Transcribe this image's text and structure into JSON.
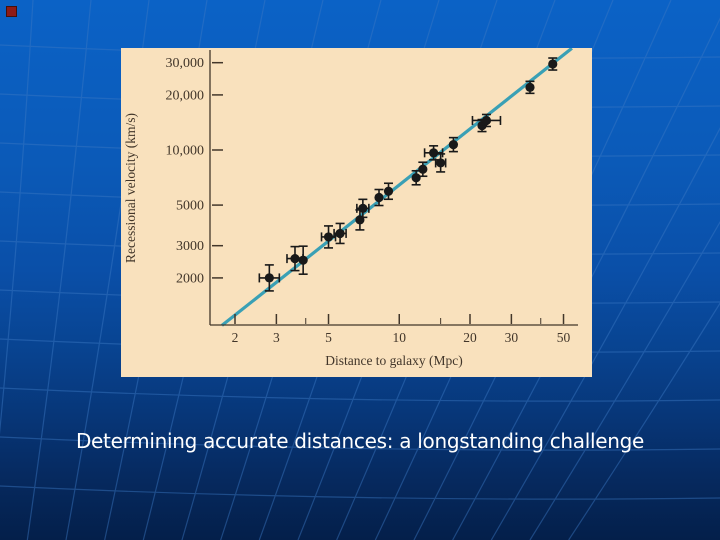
{
  "slide": {
    "caption": "Determining accurate distances: a longstanding challenge",
    "bullet_color": "#8e1b17",
    "background": {
      "top": "#0b62c6",
      "bottom": "#041f4a",
      "grid_line": "#3c79c4"
    }
  },
  "chart_data": {
    "type": "scatter",
    "x_scale": "log",
    "y_scale": "log",
    "title": "",
    "xlabel": "Distance to galaxy (Mpc)",
    "ylabel": "Recessional velocity (km/s)",
    "x_ticks": [
      2,
      3,
      5,
      10,
      20,
      30,
      50
    ],
    "x_tick_labels": [
      "2",
      "3",
      "5",
      "10",
      "20",
      "30",
      "50"
    ],
    "x_minor_ticks": [
      4,
      15,
      40
    ],
    "y_ticks": [
      2000,
      3000,
      5000,
      10000,
      20000,
      30000
    ],
    "y_tick_labels": [
      "2000",
      "3000",
      "5000",
      "10,000",
      "20,000",
      "30,000"
    ],
    "xlim": [
      1.7,
      58
    ],
    "ylim": [
      1100,
      36000
    ],
    "grid": false,
    "legend": "none",
    "points": [
      {
        "d": 2.8,
        "v": 2000,
        "ev": 13,
        "eh": 10
      },
      {
        "d": 3.6,
        "v": 2550,
        "ev": 12,
        "eh": 8
      },
      {
        "d": 3.9,
        "v": 2500,
        "ev": 14,
        "eh": 0
      },
      {
        "d": 5.0,
        "v": 3350,
        "ev": 11,
        "eh": 7
      },
      {
        "d": 5.6,
        "v": 3500,
        "ev": 10,
        "eh": 6
      },
      {
        "d": 6.8,
        "v": 4150,
        "ev": 10,
        "eh": 0
      },
      {
        "d": 7.0,
        "v": 4800,
        "ev": 9,
        "eh": 6
      },
      {
        "d": 8.2,
        "v": 5500,
        "ev": 8,
        "eh": 0
      },
      {
        "d": 9.0,
        "v": 5950,
        "ev": 8,
        "eh": 0
      },
      {
        "d": 11.8,
        "v": 7050,
        "ev": 7,
        "eh": 0
      },
      {
        "d": 12.6,
        "v": 7850,
        "ev": 7,
        "eh": 0
      },
      {
        "d": 14.0,
        "v": 9650,
        "ev": 7,
        "eh": 9
      },
      {
        "d": 15.0,
        "v": 8500,
        "ev": 9,
        "eh": 5
      },
      {
        "d": 17.0,
        "v": 10700,
        "ev": 7,
        "eh": 0
      },
      {
        "d": 22.5,
        "v": 13600,
        "ev": 6,
        "eh": 0
      },
      {
        "d": 23.5,
        "v": 14500,
        "ev": 6,
        "eh": 14
      },
      {
        "d": 36,
        "v": 22000,
        "ev": 6,
        "eh": 0
      },
      {
        "d": 45,
        "v": 29500,
        "ev": 6,
        "eh": 0
      }
    ],
    "fit_line": {
      "d1": 1.76,
      "v1": 1100,
      "d2": 54.3,
      "v2": 36000,
      "color": "#3aa0b5"
    },
    "colors": {
      "panel_bg": "#f9e1bd",
      "axis": "#42362a",
      "point": "#191919"
    }
  }
}
